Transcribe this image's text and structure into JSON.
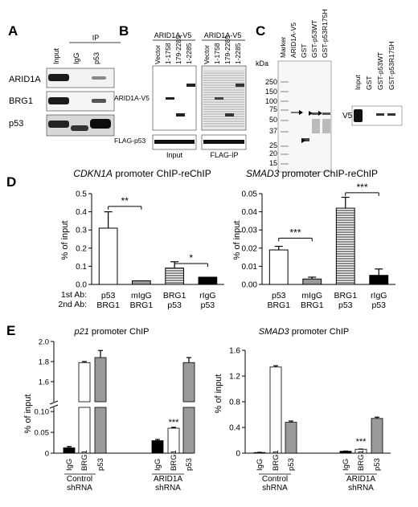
{
  "panelA": {
    "letter": "A",
    "ip_header": "IP",
    "lanes": [
      "Input",
      "IgG",
      "p53"
    ],
    "rows": [
      "ARID1A",
      "BRG1",
      "p53"
    ]
  },
  "panelB": {
    "letter": "B",
    "group_left": "ARID1A-V5",
    "group_right": "ARID1A-V5",
    "lanes": [
      "Vector",
      "1-1758",
      "179-2285",
      "1-2285"
    ],
    "row_top": "ARID1A-V5",
    "row_bottom": "FLAG-p53",
    "foot_left": "Input",
    "foot_right": "FLAG-IP"
  },
  "panelC": {
    "letter": "C",
    "kda": "kDa",
    "lanes": [
      "Marker",
      "ARID1A-V5",
      "GST",
      "GST-p53WT",
      "GST-p53R175H"
    ],
    "markers": [
      "250",
      "150",
      "100",
      "75",
      "50",
      "37",
      "25",
      "20",
      "15"
    ],
    "blot_lanes": [
      "Input",
      "GST",
      "GST-p53WT",
      "GST-p53R175H"
    ],
    "blot_label": "V5"
  },
  "panelD": {
    "letter": "D",
    "left_title_gene": "CDKN1A",
    "left_title_rest": " promoter ChIP-reChIP",
    "right_title_gene": "SMAD3",
    "right_title_rest": " promoter ChIP-reChIP",
    "row1_label": "1st Ab:",
    "row2_label": "2nd Ab:",
    "ylabel": "% of input"
  },
  "panelE": {
    "letter": "E",
    "left_title_gene": "p21",
    "left_title_rest": " promoter ChIP",
    "right_title_gene": "SMAD3",
    "right_title_rest": " promoter ChIP",
    "ylabel": "% of input",
    "group1": [
      "Control",
      "shRNA"
    ],
    "group2": [
      "ARID1A",
      "shRNA"
    ]
  },
  "chart_data": [
    {
      "type": "bar",
      "title": "CDKN1A promoter ChIP-reChIP",
      "ylabel": "% of input",
      "ylim": [
        0,
        0.5
      ],
      "yticks": [
        "0.0",
        "0.1",
        "0.2",
        "0.3",
        "0.4",
        "0.5"
      ],
      "categories_1st": [
        "p53",
        "mIgG",
        "BRG1",
        "rIgG"
      ],
      "categories_2nd": [
        "BRG1",
        "BRG1",
        "p53",
        "p53"
      ],
      "values": [
        0.31,
        0.02,
        0.09,
        0.04
      ],
      "errors": [
        0.09,
        0.0,
        0.035,
        0.0
      ],
      "significance": [
        "**",
        "*"
      ]
    },
    {
      "type": "bar",
      "title": "SMAD3 promoter ChIP-reChIP",
      "ylabel": "% of input",
      "ylim": [
        0,
        0.05
      ],
      "yticks": [
        "0.00",
        "0.01",
        "0.02",
        "0.03",
        "0.04",
        "0.05"
      ],
      "categories_1st": [
        "p53",
        "mIgG",
        "BRG1",
        "rIgG"
      ],
      "categories_2nd": [
        "BRG1",
        "BRG1",
        "p53",
        "p53"
      ],
      "values": [
        0.019,
        0.003,
        0.042,
        0.005
      ],
      "errors": [
        0.002,
        0.001,
        0.006,
        0.0035
      ],
      "significance": [
        "***",
        "***"
      ]
    },
    {
      "type": "bar",
      "title": "p21 promoter ChIP",
      "ylabel": "% of input",
      "axis_break": true,
      "yticks_upper": [
        "1.6",
        "1.8",
        "2.0"
      ],
      "yticks_lower": [
        "0",
        "0.05",
        "0.10"
      ],
      "categories": [
        "IgG",
        "BRG1",
        "p53",
        "IgG",
        "BRG1",
        "p53"
      ],
      "groups": [
        "Control shRNA",
        "ARID1A shRNA"
      ],
      "values": [
        0.013,
        1.79,
        1.84,
        0.03,
        0.06,
        1.79
      ],
      "errors": [
        0.003,
        0.01,
        0.07,
        0.003,
        0.002,
        0.05
      ],
      "significance": [
        "***"
      ]
    },
    {
      "type": "bar",
      "title": "SMAD3 promoter ChIP",
      "ylabel": "% of input",
      "ylim": [
        0,
        1.6
      ],
      "yticks": [
        "0",
        "0.4",
        "0.8",
        "1.2",
        "1.6"
      ],
      "categories": [
        "IgG",
        "BRG1",
        "p53",
        "IgG",
        "BRG1",
        "p53"
      ],
      "groups": [
        "Control shRNA",
        "ARID1A shRNA"
      ],
      "values": [
        0.01,
        1.34,
        0.48,
        0.03,
        0.06,
        0.54
      ],
      "errors": [
        0.003,
        0.02,
        0.02,
        0.003,
        0.003,
        0.02
      ],
      "significance": [
        "***"
      ]
    }
  ]
}
